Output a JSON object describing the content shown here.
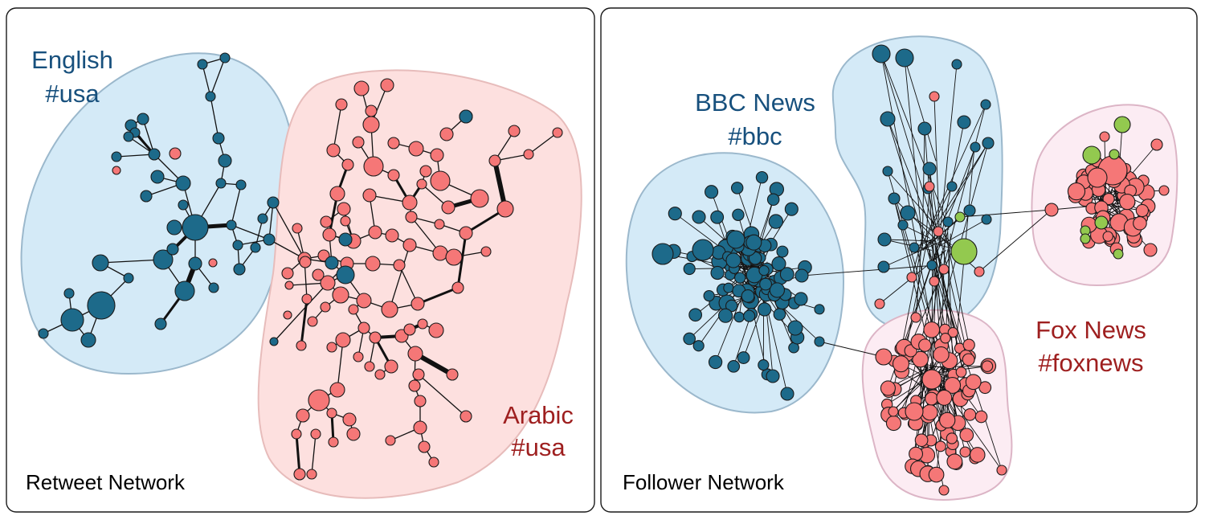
{
  "colors": {
    "blue_node": "#1d6a8a",
    "red_node": "#f57777",
    "green_node": "#93c94f",
    "blue_region": "#d4eaf7",
    "blue_region_stroke": "#9bb8cc",
    "red_region": "#fde0df",
    "red_region_stroke": "#e7bcbb",
    "pink_region": "#fcecf3",
    "pink_region_stroke": "#dcb5c6",
    "blue_text": "#17507d",
    "red_text": "#9e1f1f"
  },
  "retweet": {
    "title": "Retweet Network",
    "english_line1": "English",
    "english_line2": "#usa",
    "arabic_line1": "Arabic",
    "arabic_line2": "#usa"
  },
  "follower": {
    "title": "Follower Network",
    "bbc_line1": "BBC News",
    "bbc_line2": "#bbc",
    "fox_line1": "Fox News",
    "fox_line2": "#foxnews"
  }
}
